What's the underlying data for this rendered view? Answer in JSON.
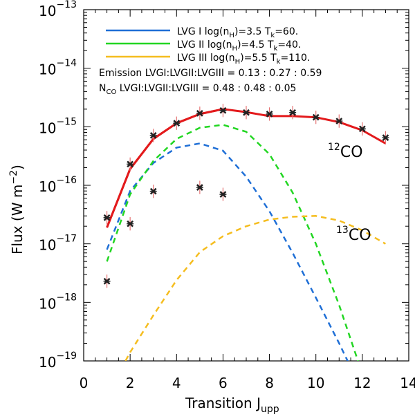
{
  "chart_data": {
    "type": "line",
    "xlabel_main": "Transition J",
    "xlabel_sub": "upp",
    "ylabel": "Flux (W m",
    "ylabel_sup": "−2",
    "ylabel_close": ")",
    "xlim": [
      0,
      14
    ],
    "ylim_log10": [
      -19,
      -13
    ],
    "yscale": "log",
    "x_ticks": [
      0,
      2,
      4,
      6,
      8,
      10,
      12,
      14
    ],
    "x_tick_labels": [
      "0",
      "2",
      "4",
      "6",
      "8",
      "10",
      "12",
      "14"
    ],
    "y_ticks": [
      {
        "exp": -19,
        "base": "10",
        "sup": "−19"
      },
      {
        "exp": -18,
        "base": "10",
        "sup": "−18"
      },
      {
        "exp": -17,
        "base": "10",
        "sup": "−17"
      },
      {
        "exp": -16,
        "base": "10",
        "sup": "−16"
      },
      {
        "exp": -15,
        "base": "10",
        "sup": "−15"
      },
      {
        "exp": -14,
        "base": "10",
        "sup": "−14"
      },
      {
        "exp": -13,
        "base": "10",
        "sup": "−13"
      }
    ],
    "legend": [
      {
        "name": "LVG I",
        "text_a": "LVG I log(n",
        "sub_a": "H",
        "text_b": ")=3.5 T",
        "sub_b": "k",
        "text_c": "=60.",
        "color": "#1f6fd6"
      },
      {
        "name": "LVG II",
        "text_a": "LVG II log(n",
        "sub_a": "H",
        "text_b": ")=4.5 T",
        "sub_b": "k",
        "text_c": "=40.",
        "color": "#22d622"
      },
      {
        "name": "LVG III",
        "text_a": "LVG III log(n",
        "sub_a": "H",
        "text_b": ")=5.5 T",
        "sub_b": "k",
        "text_c": "=110.",
        "color": "#f5bd1f"
      }
    ],
    "annotations": {
      "emission": "Emission LVGI:LVGII:LVGIII = 0.13 : 0.27 : 0.59",
      "nco_main": "N",
      "nco_sub": "CO",
      "nco_rest": " LVGI:LVGII:LVGIII = 0.48 : 0.48 : 0.05"
    },
    "species_labels": [
      {
        "sup": "12",
        "name": "CO"
      },
      {
        "sup": "13",
        "name": "CO"
      }
    ],
    "observed_12co": {
      "x": [
        1,
        2,
        3,
        4,
        5,
        6,
        7,
        8,
        9,
        10,
        11,
        12,
        13
      ],
      "y": [
        2.8e-17,
        2.3e-16,
        7.1e-16,
        1.15e-15,
        1.7e-15,
        1.9e-15,
        1.75e-15,
        1.65e-15,
        1.75e-15,
        1.45e-15,
        1.25e-15,
        9.2e-16,
        6.5e-16
      ]
    },
    "observed_13co": {
      "x": [
        1,
        2,
        3,
        5,
        6
      ],
      "y": [
        2.3e-18,
        2.2e-17,
        7.9e-17,
        9.2e-17,
        7e-17
      ]
    },
    "series": [
      {
        "name": "12CO total",
        "color": "#e31a1c",
        "style": "solid",
        "x": [
          1,
          2,
          3,
          4,
          5,
          6,
          7,
          8,
          9,
          10,
          11,
          12,
          13
        ],
        "y": [
          1.9e-17,
          1.9e-16,
          6.2e-16,
          1.15e-15,
          1.65e-15,
          2e-15,
          1.78e-15,
          1.52e-15,
          1.52e-15,
          1.45e-15,
          1.2e-15,
          8.7e-16,
          5.2e-16
        ]
      },
      {
        "name": "12CO LVG I",
        "color": "#1f6fd6",
        "style": "dashed",
        "x": [
          1,
          2,
          3,
          4,
          5,
          6,
          7,
          8,
          9,
          10,
          11,
          12,
          12.5
        ],
        "y": [
          8e-18,
          8e-17,
          2.4e-16,
          4.4e-16,
          5.2e-16,
          3.9e-16,
          1.4e-16,
          3.6e-17,
          7e-18,
          1.2e-18,
          2e-19,
          3e-20,
          1e-20
        ]
      },
      {
        "name": "12CO LVG II",
        "color": "#22d622",
        "style": "dashed",
        "x": [
          1,
          2,
          3,
          4,
          5,
          6,
          7,
          8,
          9,
          10,
          11,
          12
        ],
        "y": [
          5e-18,
          7e-17,
          2.6e-16,
          6.2e-16,
          9.6e-16,
          1.08e-15,
          8.2e-16,
          3.4e-16,
          7.5e-17,
          1e-17,
          9e-19,
          6e-20
        ]
      },
      {
        "name": "12CO LVG III",
        "color": "#f5bd1f",
        "style": "dashed",
        "x": [
          1.8,
          2,
          3,
          4,
          5,
          6,
          7,
          8,
          9,
          10,
          11,
          12,
          13
        ],
        "y": [
          1e-19,
          1.4e-19,
          6e-19,
          2.4e-18,
          7.2e-18,
          1.35e-17,
          2e-17,
          2.6e-17,
          2.9e-17,
          3e-17,
          2.5e-17,
          1.7e-17,
          1e-17
        ]
      },
      {
        "name": "13CO total",
        "color": "#e31a1c",
        "style": "solid",
        "x": [
          1,
          2,
          3,
          4,
          5,
          6
        ],
        "y": [
          1.9e-17,
          1.9e-16,
          6.2e-16,
          1.15e-15,
          1.65e-15,
          2e-15
        ]
      }
    ]
  }
}
